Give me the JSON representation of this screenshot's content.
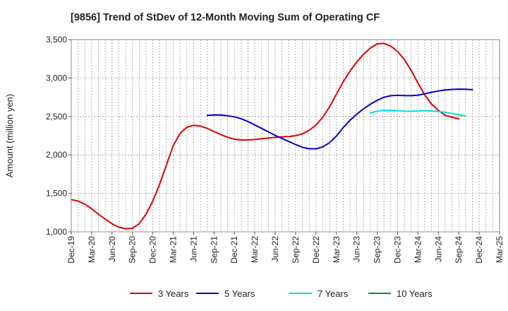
{
  "chart_data": {
    "type": "line",
    "title": "[9856]  Trend of StDev of 12-Month Moving Sum of Operating CF",
    "xlabel": "",
    "ylabel": "Amount (million yen)",
    "ylim": [
      1000,
      3500
    ],
    "yticks": [
      1000,
      1500,
      2000,
      2500,
      3000,
      3500
    ],
    "ytick_labels": [
      "1,000",
      "1,500",
      "2,000",
      "2,500",
      "3,000",
      "3,500"
    ],
    "x_start": "Dec-19",
    "x_end": "Mar-25",
    "x_tick_labels": [
      "Dec-19",
      "Mar-20",
      "Jun-20",
      "Sep-20",
      "Dec-20",
      "Mar-21",
      "Jun-21",
      "Sep-21",
      "Dec-21",
      "Mar-22",
      "Jun-22",
      "Sep-22",
      "Dec-22",
      "Mar-23",
      "Jun-23",
      "Sep-23",
      "Dec-23",
      "Mar-24",
      "Jun-24",
      "Sep-24",
      "Dec-24",
      "Mar-25"
    ],
    "grid": true,
    "legend_position": "bottom",
    "series": [
      {
        "name": "3 Years",
        "color": "#dd0000",
        "start": "Dec-19",
        "values": [
          1420,
          1400,
          1360,
          1300,
          1230,
          1165,
          1105,
          1060,
          1040,
          1045,
          1105,
          1230,
          1400,
          1620,
          1870,
          2120,
          2280,
          2360,
          2385,
          2375,
          2345,
          2305,
          2265,
          2230,
          2205,
          2195,
          2195,
          2200,
          2210,
          2220,
          2230,
          2235,
          2240,
          2250,
          2275,
          2320,
          2390,
          2490,
          2625,
          2790,
          2950,
          3090,
          3210,
          3310,
          3390,
          3445,
          3450,
          3415,
          3345,
          3240,
          3100,
          2935,
          2780,
          2660,
          2580,
          2515,
          2490,
          2470
        ]
      },
      {
        "name": "5 Years",
        "color": "#0000cc",
        "start": "Aug-21",
        "values": [
          2515,
          2520,
          2518,
          2510,
          2495,
          2470,
          2435,
          2390,
          2345,
          2300,
          2255,
          2215,
          2175,
          2135,
          2100,
          2080,
          2080,
          2105,
          2160,
          2245,
          2355,
          2450,
          2530,
          2600,
          2660,
          2710,
          2750,
          2770,
          2775,
          2772,
          2770,
          2778,
          2795,
          2815,
          2832,
          2845,
          2852,
          2856,
          2855,
          2848
        ]
      },
      {
        "name": "7 Years",
        "color": "#00dddd",
        "start": "Aug-23",
        "values": [
          2545,
          2570,
          2580,
          2580,
          2575,
          2570,
          2568,
          2572,
          2575,
          2572,
          2565,
          2555,
          2540,
          2525,
          2505
        ]
      },
      {
        "name": "10 Years",
        "color": "#228822",
        "start": "Aug-23",
        "values": []
      }
    ]
  }
}
